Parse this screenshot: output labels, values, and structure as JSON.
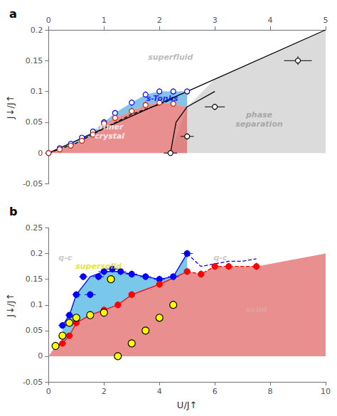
{
  "chart_data": [
    {
      "type": "scatter",
      "title": "a",
      "ylabel": "J↓/J↑",
      "xlim": [
        0,
        5
      ],
      "ylim": [
        -0.05,
        0.2
      ],
      "xticks": [
        0,
        1,
        2,
        3,
        4,
        5
      ],
      "yticks": [
        -0.05,
        0,
        0.05,
        0.1,
        0.15,
        0.2
      ],
      "grid": false,
      "series": [
        {
          "type": "area",
          "color": "#cccccc",
          "x": [
            2.2,
            5.0,
            5.0,
            3.0,
            2.5,
            2.2
          ],
          "values": [
            0.0,
            0.0,
            0.2,
            0.12,
            0.075,
            0.0
          ]
        },
        {
          "type": "area",
          "color": "#e06060",
          "x": [
            0,
            0.2,
            0.4,
            0.6,
            0.8,
            1.0,
            1.2,
            1.5,
            1.75,
            2.0,
            2.25,
            2.5,
            2.5,
            2.3,
            2.2,
            0
          ],
          "values": [
            0,
            0.006,
            0.012,
            0.02,
            0.03,
            0.048,
            0.057,
            0.068,
            0.078,
            0.082,
            0.08,
            0.075,
            0.0,
            0.0,
            0.0,
            0
          ]
        },
        {
          "type": "band",
          "color": "#50a8e0",
          "x": [
            0,
            0.2,
            0.4,
            0.6,
            0.8,
            1.0,
            1.2,
            1.5,
            1.75,
            2.0,
            2.25,
            2.5
          ],
          "lower": [
            0,
            0.006,
            0.012,
            0.02,
            0.03,
            0.048,
            0.057,
            0.068,
            0.078,
            0.082,
            0.08,
            0.075
          ],
          "upper": [
            0,
            0.008,
            0.015,
            0.025,
            0.035,
            0.05,
            0.065,
            0.082,
            0.095,
            0.1,
            0.1,
            0.1
          ]
        },
        {
          "type": "line",
          "color": "black",
          "line_style": "solid",
          "x": [
            0,
            5.0
          ],
          "values": [
            0,
            0.2
          ]
        },
        {
          "type": "line",
          "color": "black",
          "line_style": "solid",
          "x": [
            2.2,
            2.3,
            2.5,
            3.0
          ],
          "values": [
            0.0,
            0.05,
            0.075,
            0.1
          ]
        },
        {
          "type": "line",
          "color": "black",
          "line_style": "dashed",
          "x": [
            0,
            0.5,
            1.0,
            1.5,
            2.0,
            2.25
          ],
          "values": [
            0,
            0.016,
            0.04,
            0.063,
            0.079,
            0.088
          ]
        },
        {
          "type": "scatter",
          "color": "blue",
          "marker": "open circle",
          "x": [
            0,
            0.2,
            0.4,
            0.6,
            0.8,
            1.0,
            1.2,
            1.5,
            1.75,
            2.0,
            2.25,
            2.5
          ],
          "values": [
            0,
            0.008,
            0.015,
            0.025,
            0.035,
            0.05,
            0.065,
            0.082,
            0.095,
            0.1,
            0.1,
            0.1
          ],
          "xerr": [
            0,
            0.04,
            0.04,
            0.04,
            0.04,
            0.04,
            0.04,
            0.04,
            0.04,
            0.04,
            0.04,
            0.04
          ],
          "yerr": [
            0,
            0.003,
            0.003,
            0.003,
            0.004,
            0.005,
            0.005,
            0.005,
            0.005,
            0.005,
            0.005,
            0.005
          ]
        },
        {
          "type": "scatter",
          "color": "#cc2200",
          "marker": "open circle",
          "x": [
            0,
            0.2,
            0.4,
            0.6,
            0.8,
            1.0,
            1.2,
            1.5,
            1.75,
            2.0,
            2.25
          ],
          "values": [
            0,
            0.006,
            0.012,
            0.02,
            0.03,
            0.048,
            0.057,
            0.068,
            0.078,
            0.082,
            0.08
          ],
          "xerr": [
            0,
            0.03,
            0.03,
            0.03,
            0.03,
            0.03,
            0.03,
            0.03,
            0.03,
            0.03,
            0.03
          ],
          "yerr": [
            0,
            0.003,
            0.003,
            0.004,
            0.004,
            0.005,
            0.005,
            0.006,
            0.006,
            0.005,
            0.005
          ]
        },
        {
          "type": "scatter",
          "color": "black",
          "marker": "open circle",
          "x": [
            2.2,
            2.5,
            3.0,
            4.5
          ],
          "values": [
            0.0,
            0.027,
            0.075,
            0.15
          ],
          "xerr": [
            0.12,
            0.12,
            0.18,
            0.25
          ],
          "yerr": [
            0.004,
            0.005,
            0.005,
            0.007
          ]
        }
      ],
      "annotations": [
        {
          "text": "superfluid",
          "x": 2.2,
          "y": 0.155,
          "color": "#aaaaaa"
        },
        {
          "text": "s-Tonks",
          "x": 2.05,
          "y": 0.088,
          "color": "blue"
        },
        {
          "text": "trimer\ncrystal",
          "x": 1.1,
          "y": 0.035,
          "color": "white"
        },
        {
          "text": "phase\nseparation",
          "x": 3.8,
          "y": 0.055,
          "color": "#999999"
        }
      ]
    },
    {
      "type": "scatter",
      "title": "b",
      "ylabel": "J↓/J↑",
      "xlabel": "U/J↑",
      "xlim": [
        0,
        10
      ],
      "ylim": [
        -0.05,
        0.25
      ],
      "xticks": [
        0,
        2,
        4,
        6,
        8,
        10
      ],
      "yticks": [
        -0.05,
        0,
        0.05,
        0.1,
        0.15,
        0.2,
        0.25
      ],
      "grid": false,
      "series": [
        {
          "type": "area",
          "color": "#e06060",
          "x": [
            0,
            0.25,
            0.5,
            0.75,
            1.0,
            1.5,
            2.0,
            2.5,
            3.0,
            4.0,
            5.0,
            5.5,
            6.0,
            6.5,
            7.5,
            10,
            10,
            0
          ],
          "values": [
            0,
            0.02,
            0.025,
            0.04,
            0.065,
            0.08,
            0.09,
            0.1,
            0.12,
            0.14,
            0.165,
            0.16,
            0.175,
            0.175,
            0.175,
            0.2,
            0,
            0
          ]
        },
        {
          "type": "area",
          "color": "#40b0e0",
          "x": [
            0.5,
            0.75,
            1.0,
            1.5,
            2.0,
            2.5,
            3.0,
            3.5,
            4.0,
            4.5,
            5.0,
            5.0,
            4.0,
            3.0,
            2.5,
            2.0,
            1.5,
            1.0,
            0.75,
            0.5
          ],
          "values": [
            0.06,
            0.08,
            0.12,
            0.155,
            0.165,
            0.165,
            0.16,
            0.155,
            0.15,
            0.155,
            0.2,
            0.165,
            0.14,
            0.12,
            0.1,
            0.09,
            0.08,
            0.065,
            0.04,
            0.025
          ]
        },
        {
          "type": "line",
          "color": "blue",
          "line_style": "solid",
          "x": [
            0.5,
            0.75,
            1.0,
            1.5,
            2.0,
            2.5,
            3.0,
            3.5,
            4.0,
            4.5,
            5.0
          ],
          "values": [
            0.06,
            0.08,
            0.12,
            0.155,
            0.165,
            0.165,
            0.16,
            0.155,
            0.15,
            0.155,
            0.2
          ]
        },
        {
          "type": "line",
          "color": "blue",
          "line_style": "dashed",
          "x": [
            5.0,
            5.5,
            6.0,
            6.5,
            7.0,
            7.5
          ],
          "values": [
            0.2,
            0.175,
            0.18,
            0.185,
            0.185,
            0.19
          ]
        },
        {
          "type": "line",
          "color": "red",
          "line_style": "solid",
          "x": [
            0.25,
            0.5,
            0.75,
            1.0,
            1.5,
            2.0,
            2.5,
            3.0,
            4.0,
            5.0
          ],
          "values": [
            0.02,
            0.025,
            0.04,
            0.065,
            0.08,
            0.09,
            0.1,
            0.12,
            0.14,
            0.165
          ]
        },
        {
          "type": "line",
          "color": "red",
          "line_style": "dashed",
          "x": [
            5.0,
            5.5,
            6.0,
            6.5,
            7.5
          ],
          "values": [
            0.165,
            0.16,
            0.175,
            0.175,
            0.175
          ]
        },
        {
          "type": "scatter",
          "color": "blue",
          "marker": "filled circle",
          "x": [
            1.5,
            1.8,
            2.0,
            2.3,
            2.6,
            3.0,
            3.5,
            4.0,
            4.5,
            5.0,
            0.5,
            0.75,
            1.0,
            1.25
          ],
          "values": [
            0.12,
            0.155,
            0.165,
            0.17,
            0.165,
            0.16,
            0.155,
            0.15,
            0.155,
            0.2,
            0.06,
            0.08,
            0.12,
            0.155
          ],
          "xerr": [
            0.2,
            0.2,
            0.2,
            0.2,
            0.2,
            0.2,
            0.2,
            0.2,
            0.2,
            0.2,
            0.15,
            0.15,
            0.15,
            0.15
          ],
          "yerr": [
            0.007,
            0.007,
            0.007,
            0.007,
            0.007,
            0.007,
            0.007,
            0.007,
            0.007,
            0.007,
            0.006,
            0.006,
            0.007,
            0.007
          ]
        },
        {
          "type": "scatter",
          "color": "red",
          "marker": "filled circle",
          "x": [
            0.25,
            0.5,
            0.75,
            1.0,
            1.5,
            2.0,
            2.5,
            3.0,
            4.0,
            5.0,
            5.5,
            6.0,
            6.5,
            7.5
          ],
          "values": [
            0.02,
            0.025,
            0.04,
            0.065,
            0.08,
            0.09,
            0.1,
            0.12,
            0.14,
            0.165,
            0.16,
            0.175,
            0.175,
            0.175
          ],
          "xerr": [
            0.12,
            0.12,
            0.12,
            0.12,
            0.12,
            0.12,
            0.12,
            0.12,
            0.12,
            0.12,
            0.12,
            0.12,
            0.12,
            0.12
          ],
          "yerr": [
            0.005,
            0.005,
            0.005,
            0.006,
            0.006,
            0.006,
            0.007,
            0.007,
            0.007,
            0.007,
            0.007,
            0.007,
            0.007,
            0.007
          ]
        },
        {
          "type": "scatter",
          "color": "yellow",
          "marker": "outlined circle",
          "x": [
            2.5,
            3.0,
            3.5,
            4.0,
            4.5,
            2.25,
            0.25,
            0.5,
            0.75,
            1.0,
            1.5,
            2.0
          ],
          "values": [
            0.0,
            0.025,
            0.05,
            0.075,
            0.1,
            0.15,
            0.02,
            0.04,
            0.065,
            0.075,
            0.08,
            0.085
          ],
          "xerr": [
            0.12,
            0.12,
            0.12,
            0.12,
            0.12,
            0.12,
            0.08,
            0.08,
            0.08,
            0.08,
            0.08,
            0.08
          ],
          "yerr": [
            0.004,
            0.005,
            0.005,
            0.005,
            0.006,
            0.006,
            0.004,
            0.005,
            0.005,
            0.005,
            0.005,
            0.005
          ]
        }
      ],
      "annotations": [
        {
          "text": "supersolid",
          "x": 1.8,
          "y": 0.175,
          "color": "#dddd00"
        },
        {
          "text": "solid",
          "x": 7.5,
          "y": 0.09,
          "color": "#ddaaaa"
        },
        {
          "text": "q-c",
          "x": 0.6,
          "y": 0.192,
          "color": "#bbbbbb"
        },
        {
          "text": "q-c",
          "x": 6.2,
          "y": 0.192,
          "color": "#bbbbbb"
        }
      ]
    }
  ]
}
